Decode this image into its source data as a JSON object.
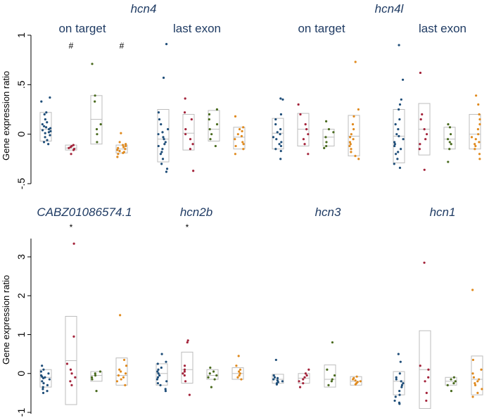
{
  "chart_data": {
    "type": "scatter",
    "ylabel": "Gene expression ratio",
    "group_colors": [
      "#1f4e79",
      "#a4243b",
      "#4a6b1f",
      "#e08a1e"
    ],
    "panels": [
      {
        "row": 0,
        "gene": "hcn4",
        "ylim": [
          -0.5,
          1.0
        ],
        "yticks": [
          {
            "v": 1,
            "label": "1"
          },
          {
            "v": 0.5,
            "label": ".5"
          },
          {
            "v": 0,
            "label": "0"
          },
          {
            "v": -0.5,
            "label": "-.5"
          }
        ],
        "subpanels": [
          {
            "label": "on target",
            "groups": [
              {
                "box": [
                  -0.07,
                  0.22
                ],
                "median": 0.05,
                "sig": "",
                "points": [
                  0.37,
                  0.33,
                  0.22,
                  0.2,
                  0.15,
                  0.12,
                  0.1,
                  0.08,
                  0.07,
                  0.06,
                  0.05,
                  0.04,
                  0.03,
                  0.02,
                  0.01,
                  -0.01,
                  -0.03,
                  -0.06,
                  -0.08,
                  -0.1
                ]
              },
              {
                "box": [
                  -0.16,
                  -0.11
                ],
                "median": -0.14,
                "sig": "#",
                "points": [
                  -0.11,
                  -0.12,
                  -0.13,
                  -0.14,
                  -0.15,
                  -0.16,
                  -0.2
                ]
              },
              {
                "box": [
                  -0.1,
                  0.39
                ],
                "median": 0.15,
                "sig": "",
                "points": [
                  0.71,
                  0.39,
                  0.33,
                  0.1,
                  0.05,
                  0.0,
                  -0.08
                ]
              },
              {
                "box": [
                  -0.19,
                  -0.11
                ],
                "median": -0.15,
                "sig": "#",
                "points": [
                  0.01,
                  -0.08,
                  -0.1,
                  -0.11,
                  -0.12,
                  -0.13,
                  -0.14,
                  -0.15,
                  -0.16,
                  -0.17,
                  -0.18,
                  -0.19,
                  -0.2,
                  -0.23
                ]
              }
            ]
          },
          {
            "label": "last exon",
            "groups": [
              {
                "box": [
                  -0.28,
                  0.25
                ],
                "median": -0.05,
                "sig": "",
                "points": [
                  0.91,
                  0.57,
                  0.22,
                  0.15,
                  0.1,
                  0.05,
                  0.02,
                  0.0,
                  -0.03,
                  -0.05,
                  -0.08,
                  -0.1,
                  -0.12,
                  -0.15,
                  -0.18,
                  -0.2,
                  -0.25,
                  -0.3,
                  -0.35,
                  -0.38
                ]
              },
              {
                "box": [
                  -0.16,
                  0.2
                ],
                "median": 0.01,
                "sig": "",
                "points": [
                  0.36,
                  0.22,
                  0.15,
                  0.05,
                  0.0,
                  -0.05,
                  -0.1,
                  -0.15,
                  -0.37
                ]
              },
              {
                "box": [
                  -0.07,
                  0.24
                ],
                "median": 0.05,
                "sig": "",
                "points": [
                  0.25,
                  0.2,
                  0.15,
                  0.1,
                  0.05,
                  0.0,
                  -0.05,
                  -0.12
                ]
              },
              {
                "box": [
                  -0.15,
                  0.07
                ],
                "median": -0.03,
                "sig": "",
                "points": [
                  0.18,
                  0.07,
                  0.05,
                  0.03,
                  0.0,
                  -0.02,
                  -0.05,
                  -0.08,
                  -0.1,
                  -0.12,
                  -0.15,
                  -0.2
                ]
              }
            ]
          }
        ]
      },
      {
        "row": 0,
        "gene": "hcn4l",
        "ylim": [
          -0.5,
          1.0
        ],
        "yticks": [],
        "subpanels": [
          {
            "label": "on target",
            "groups": [
              {
                "box": [
                  -0.15,
                  0.16
                ],
                "median": 0.01,
                "sig": "",
                "points": [
                  0.36,
                  0.35,
                  0.2,
                  0.15,
                  0.1,
                  0.05,
                  0.02,
                  0.0,
                  -0.03,
                  -0.05,
                  -0.08,
                  -0.1,
                  -0.12,
                  -0.15,
                  -0.17,
                  -0.25
                ]
              },
              {
                "box": [
                  -0.12,
                  0.21
                ],
                "median": 0.05,
                "sig": "",
                "points": [
                  0.3,
                  0.2,
                  0.1,
                  0.05,
                  0.0,
                  -0.05,
                  -0.1,
                  -0.2
                ]
              },
              {
                "box": [
                  -0.12,
                  0.05
                ],
                "median": -0.03,
                "sig": "",
                "points": [
                  0.13,
                  0.05,
                  0.02,
                  -0.03,
                  -0.08,
                  -0.12,
                  -0.14
                ]
              },
              {
                "box": [
                  -0.22,
                  0.19
                ],
                "median": -0.02,
                "sig": "",
                "points": [
                  0.73,
                  0.25,
                  0.18,
                  0.1,
                  0.05,
                  0.0,
                  -0.03,
                  -0.05,
                  -0.08,
                  -0.1,
                  -0.12,
                  -0.15,
                  -0.18,
                  -0.22,
                  -0.25
                ]
              }
            ]
          },
          {
            "label": "last exon",
            "groups": [
              {
                "box": [
                  -0.29,
                  0.25
                ],
                "median": -0.02,
                "sig": "",
                "points": [
                  0.9,
                  0.55,
                  0.35,
                  0.3,
                  0.25,
                  0.15,
                  0.1,
                  0.05,
                  0.0,
                  -0.02,
                  -0.05,
                  -0.08,
                  -0.1,
                  -0.12,
                  -0.15,
                  -0.18,
                  -0.2,
                  -0.25,
                  -0.3,
                  -0.34
                ]
              },
              {
                "box": [
                  -0.21,
                  0.31
                ],
                "median": 0.05,
                "sig": "",
                "points": [
                  0.62,
                  0.2,
                  0.15,
                  0.05,
                  0.0,
                  -0.05,
                  -0.1,
                  -0.15,
                  -0.36
                ]
              },
              {
                "box": [
                  -0.15,
                  0.07
                ],
                "median": -0.05,
                "sig": "",
                "points": [
                  0.1,
                  0.07,
                  0.0,
                  -0.05,
                  -0.08,
                  -0.1,
                  -0.15,
                  -0.28
                ]
              },
              {
                "box": [
                  -0.15,
                  0.2
                ],
                "median": 0.0,
                "sig": "",
                "points": [
                  0.39,
                  0.3,
                  0.2,
                  0.15,
                  0.1,
                  0.05,
                  0.0,
                  -0.03,
                  -0.05,
                  -0.08,
                  -0.1,
                  -0.12,
                  -0.15,
                  -0.2,
                  -0.25
                ]
              }
            ]
          }
        ]
      },
      {
        "row": 1,
        "gene": "CABZ01086574.1",
        "ylim": [
          -1,
          3.4
        ],
        "yticks": [
          {
            "v": 3,
            "label": "3"
          },
          {
            "v": 2,
            "label": "2"
          },
          {
            "v": 1,
            "label": "1"
          },
          {
            "v": 0,
            "label": "0"
          },
          {
            "v": -1,
            "label": "-1"
          }
        ],
        "subpanels": [
          {
            "label": "",
            "groups": [
              {
                "box": [
                  -0.35,
                  0.1
                ],
                "median": -0.1,
                "sig": "",
                "points": [
                  0.2,
                  0.1,
                  0.05,
                  0.0,
                  -0.05,
                  -0.08,
                  -0.1,
                  -0.12,
                  -0.15,
                  -0.2,
                  -0.25,
                  -0.3,
                  -0.35,
                  -0.4,
                  -0.45,
                  -0.5
                ]
              },
              {
                "box": [
                  -0.8,
                  1.47
                ],
                "median": 0.33,
                "sig": "*",
                "points": [
                  3.34,
                  0.95,
                  0.25,
                  0.1,
                  0.0,
                  -0.1,
                  -0.2,
                  -0.3
                ]
              },
              {
                "box": [
                  -0.2,
                  0.05
                ],
                "median": -0.05,
                "sig": "",
                "points": [
                  0.05,
                  0.0,
                  -0.05,
                  -0.1,
                  -0.15,
                  -0.45
                ]
              },
              {
                "box": [
                  -0.3,
                  0.4
                ],
                "median": -0.05,
                "sig": "",
                "points": [
                  1.5,
                  0.35,
                  0.2,
                  0.1,
                  0.05,
                  0.0,
                  -0.05,
                  -0.1,
                  -0.15,
                  -0.2,
                  -0.3
                ]
              }
            ]
          },
          {
            "label": "",
            "gene": "hcn2b",
            "groups": [
              {
                "box": [
                  -0.3,
                  0.25
                ],
                "median": 0.0,
                "sig": "",
                "points": [
                  0.5,
                  0.3,
                  0.25,
                  0.15,
                  0.1,
                  0.05,
                  0.0,
                  -0.05,
                  -0.1,
                  -0.15,
                  -0.2,
                  -0.25,
                  -0.3,
                  -0.4,
                  -0.45
                ]
              },
              {
                "box": [
                  -0.25,
                  0.55
                ],
                "median": 0.1,
                "sig": "*",
                "points": [
                  0.85,
                  0.8,
                  0.2,
                  0.1,
                  0.05,
                  0.0,
                  -0.05,
                  -0.2,
                  -0.55
                ]
              },
              {
                "box": [
                  -0.15,
                  0.1
                ],
                "median": -0.05,
                "sig": "",
                "points": [
                  0.15,
                  0.05,
                  0.0,
                  -0.05,
                  -0.1,
                  -0.15,
                  -0.35
                ]
              },
              {
                "box": [
                  -0.15,
                  0.15
                ],
                "median": 0.0,
                "sig": "",
                "points": [
                  0.45,
                  0.2,
                  0.1,
                  0.05,
                  0.0,
                  -0.05,
                  -0.1,
                  -0.15
                ]
              }
            ]
          }
        ]
      },
      {
        "row": 1,
        "gene": "hcn3",
        "ylim": [
          -1,
          3.4
        ],
        "yticks": [],
        "subpanels": [
          {
            "label": "",
            "groups": [
              {
                "box": [
                  -0.25,
                  -0.02
                ],
                "median": -0.15,
                "sig": "",
                "points": [
                  0.35,
                  -0.05,
                  -0.1,
                  -0.12,
                  -0.15,
                  -0.18,
                  -0.2,
                  -0.22,
                  -0.25,
                  -0.28
                ]
              },
              {
                "box": [
                  -0.25,
                  0.0
                ],
                "median": -0.12,
                "sig": "",
                "points": [
                  0.1,
                  0.0,
                  -0.05,
                  -0.1,
                  -0.15,
                  -0.2,
                  -0.25,
                  -0.35
                ]
              },
              {
                "box": [
                  -0.35,
                  0.22
                ],
                "median": -0.15,
                "sig": "",
                "points": [
                  0.8,
                  0.1,
                  -0.05,
                  -0.15,
                  -0.2,
                  -0.3
                ]
              },
              {
                "box": [
                  -0.3,
                  -0.08
                ],
                "median": -0.2,
                "sig": "",
                "points": [
                  -0.08,
                  -0.12,
                  -0.15,
                  -0.18,
                  -0.2,
                  -0.22,
                  -0.25,
                  -0.28
                ]
              }
            ]
          },
          {
            "label": "",
            "gene": "hcn1",
            "groups": [
              {
                "box": [
                  -0.55,
                  0.05
                ],
                "median": -0.2,
                "sig": "",
                "points": [
                  0.5,
                  0.3,
                  0.0,
                  -0.1,
                  -0.15,
                  -0.2,
                  -0.25,
                  -0.3,
                  -0.35,
                  -0.45,
                  -0.55,
                  -0.6,
                  -0.7,
                  -0.75,
                  -0.78
                ]
              },
              {
                "box": [
                  -0.9,
                  1.1
                ],
                "median": 0.1,
                "sig": "",
                "points": [
                  2.85,
                  0.2,
                  0.1,
                  -0.1,
                  -0.2,
                  -0.5,
                  -0.7
                ]
              },
              {
                "box": [
                  -0.3,
                  -0.1
                ],
                "median": -0.2,
                "sig": "",
                "points": [
                  -0.1,
                  -0.15,
                  -0.2,
                  -0.25,
                  -0.3,
                  -0.45
                ]
              },
              {
                "box": [
                  -0.55,
                  0.45
                ],
                "median": -0.15,
                "sig": "",
                "points": [
                  2.15,
                  0.35,
                  0.1,
                  0.0,
                  -0.1,
                  -0.15,
                  -0.2,
                  -0.25,
                  -0.3,
                  -0.4,
                  -0.5,
                  -0.6
                ]
              }
            ]
          }
        ]
      }
    ]
  }
}
